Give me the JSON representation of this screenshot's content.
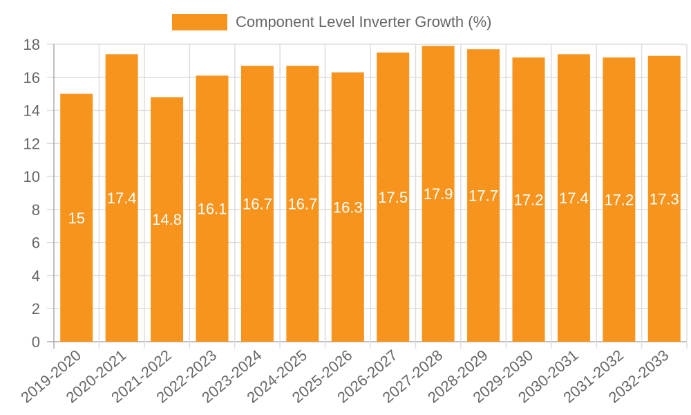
{
  "chart_data": {
    "type": "bar",
    "title": "",
    "legend": [
      {
        "label": "Component Level Inverter Growth (%)",
        "color": "#F7941E"
      }
    ],
    "legend_position": "top",
    "categories": [
      "2019-2020",
      "2020-2021",
      "2021-2022",
      "2022-2023",
      "2023-2024",
      "2024-2025",
      "2025-2026",
      "2026-2027",
      "2027-2028",
      "2028-2029",
      "2029-2030",
      "2030-2031",
      "2031-2032",
      "2032-2033"
    ],
    "series": [
      {
        "name": "Component Level Inverter Growth (%)",
        "color": "#F7941E",
        "values": [
          15,
          17.4,
          14.8,
          16.1,
          16.7,
          16.7,
          16.3,
          17.5,
          17.9,
          17.7,
          17.2,
          17.4,
          17.2,
          17.3
        ]
      }
    ],
    "data_labels": [
      "15",
      "17.4",
      "14.8",
      "16.1",
      "16.7",
      "16.7",
      "16.3",
      "17.5",
      "17.9",
      "17.7",
      "17.2",
      "17.4",
      "17.2",
      "17.3"
    ],
    "xlabel": "",
    "ylabel": "",
    "ylim": [
      0,
      18
    ],
    "yticks": [
      0,
      2,
      4,
      6,
      8,
      10,
      12,
      14,
      16,
      18
    ],
    "grid": true
  }
}
